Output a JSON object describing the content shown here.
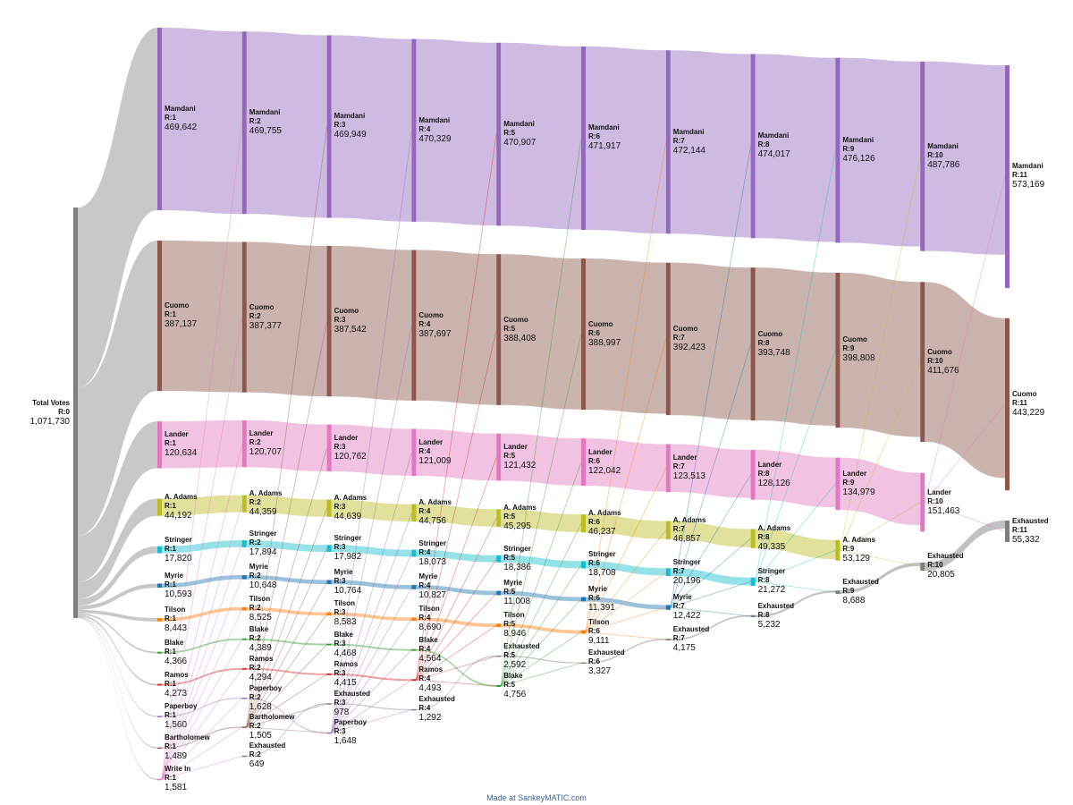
{
  "credit": "Made at SankeyMATIC.com",
  "colors": {
    "Total Votes": "#7f7f7f",
    "Mamdani": "#9467bd",
    "Cuomo": "#8c564b",
    "Lander": "#e377c2",
    "A. Adams": "#bcbd22",
    "Stringer": "#17becf",
    "Myrie": "#1f77b4",
    "Tilson": "#ff7f0e",
    "Blake": "#2ca02c",
    "Ramos": "#d62728",
    "Paperboy": "#9467bd",
    "Bartholomew": "#8c564b",
    "Write In": "#e377c2",
    "Exhausted": "#7f7f7f"
  },
  "chart_data": {
    "type": "sankey",
    "source": {
      "name": "Total Votes",
      "round": "R:0",
      "value": "1,071,730"
    },
    "rounds": [
      {
        "round": "R:1",
        "nodes": [
          {
            "name": "Mamdani",
            "value": "469,642"
          },
          {
            "name": "Cuomo",
            "value": "387,137"
          },
          {
            "name": "Lander",
            "value": "120,634"
          },
          {
            "name": "A. Adams",
            "value": "44,192"
          },
          {
            "name": "Stringer",
            "value": "17,820"
          },
          {
            "name": "Myrie",
            "value": "10,593"
          },
          {
            "name": "Tilson",
            "value": "8,443"
          },
          {
            "name": "Blake",
            "value": "4,366"
          },
          {
            "name": "Ramos",
            "value": "4,273"
          },
          {
            "name": "Paperboy",
            "value": "1,560"
          },
          {
            "name": "Bartholomew",
            "value": "1,489"
          },
          {
            "name": "Write In",
            "value": "1,581"
          }
        ]
      },
      {
        "round": "R:2",
        "nodes": [
          {
            "name": "Mamdani",
            "value": "469,755"
          },
          {
            "name": "Cuomo",
            "value": "387,377"
          },
          {
            "name": "Lander",
            "value": "120,707"
          },
          {
            "name": "A. Adams",
            "value": "44,359"
          },
          {
            "name": "Stringer",
            "value": "17,894"
          },
          {
            "name": "Myrie",
            "value": "10,648"
          },
          {
            "name": "Tilson",
            "value": "8,525"
          },
          {
            "name": "Blake",
            "value": "4,389"
          },
          {
            "name": "Ramos",
            "value": "4,294"
          },
          {
            "name": "Paperboy",
            "value": "1,628"
          },
          {
            "name": "Bartholomew",
            "value": "1,505"
          },
          {
            "name": "Exhausted",
            "value": "649"
          }
        ]
      },
      {
        "round": "R:3",
        "nodes": [
          {
            "name": "Mamdani",
            "value": "469,949"
          },
          {
            "name": "Cuomo",
            "value": "387,542"
          },
          {
            "name": "Lander",
            "value": "120,762"
          },
          {
            "name": "A. Adams",
            "value": "44,639"
          },
          {
            "name": "Stringer",
            "value": "17,982"
          },
          {
            "name": "Myrie",
            "value": "10,764"
          },
          {
            "name": "Tilson",
            "value": "8,583"
          },
          {
            "name": "Blake",
            "value": "4,468"
          },
          {
            "name": "Ramos",
            "value": "4,415"
          },
          {
            "name": "Exhausted",
            "value": "978"
          },
          {
            "name": "Paperboy",
            "value": "1,648"
          }
        ]
      },
      {
        "round": "R:4",
        "nodes": [
          {
            "name": "Mamdani",
            "value": "470,329"
          },
          {
            "name": "Cuomo",
            "value": "387,697"
          },
          {
            "name": "Lander",
            "value": "121,009"
          },
          {
            "name": "A. Adams",
            "value": "44,756"
          },
          {
            "name": "Stringer",
            "value": "18,073"
          },
          {
            "name": "Myrie",
            "value": "10,827"
          },
          {
            "name": "Tilson",
            "value": "8,690"
          },
          {
            "name": "Blake",
            "value": "4,564"
          },
          {
            "name": "Ramos",
            "value": "4,493"
          },
          {
            "name": "Exhausted",
            "value": "1,292"
          }
        ]
      },
      {
        "round": "R:5",
        "nodes": [
          {
            "name": "Mamdani",
            "value": "470,907"
          },
          {
            "name": "Cuomo",
            "value": "388,408"
          },
          {
            "name": "Lander",
            "value": "121,432"
          },
          {
            "name": "A. Adams",
            "value": "45,295"
          },
          {
            "name": "Stringer",
            "value": "18,386"
          },
          {
            "name": "Myrie",
            "value": "11,008"
          },
          {
            "name": "Tilson",
            "value": "8,946"
          },
          {
            "name": "Exhausted",
            "value": "2,592"
          },
          {
            "name": "Blake",
            "value": "4,756"
          }
        ]
      },
      {
        "round": "R:6",
        "nodes": [
          {
            "name": "Mamdani",
            "value": "471,917"
          },
          {
            "name": "Cuomo",
            "value": "388,997"
          },
          {
            "name": "Lander",
            "value": "122,042"
          },
          {
            "name": "A. Adams",
            "value": "46,237"
          },
          {
            "name": "Stringer",
            "value": "18,708"
          },
          {
            "name": "Myrie",
            "value": "11,391"
          },
          {
            "name": "Tilson",
            "value": "9,111"
          },
          {
            "name": "Exhausted",
            "value": "3,327"
          }
        ]
      },
      {
        "round": "R:7",
        "nodes": [
          {
            "name": "Mamdani",
            "value": "472,144"
          },
          {
            "name": "Cuomo",
            "value": "392,423"
          },
          {
            "name": "Lander",
            "value": "123,513"
          },
          {
            "name": "A. Adams",
            "value": "46,857"
          },
          {
            "name": "Stringer",
            "value": "20,196"
          },
          {
            "name": "Myrie",
            "value": "12,422"
          },
          {
            "name": "Exhausted",
            "value": "4,175"
          }
        ]
      },
      {
        "round": "R:8",
        "nodes": [
          {
            "name": "Mamdani",
            "value": "474,017"
          },
          {
            "name": "Cuomo",
            "value": "393,748"
          },
          {
            "name": "Lander",
            "value": "128,126"
          },
          {
            "name": "A. Adams",
            "value": "49,335"
          },
          {
            "name": "Stringer",
            "value": "21,272"
          },
          {
            "name": "Exhausted",
            "value": "5,232"
          }
        ]
      },
      {
        "round": "R:9",
        "nodes": [
          {
            "name": "Mamdani",
            "value": "476,126"
          },
          {
            "name": "Cuomo",
            "value": "398,808"
          },
          {
            "name": "Lander",
            "value": "134,979"
          },
          {
            "name": "A. Adams",
            "value": "53,129"
          },
          {
            "name": "Exhausted",
            "value": "8,688"
          }
        ]
      },
      {
        "round": "R:10",
        "nodes": [
          {
            "name": "Mamdani",
            "value": "487,786"
          },
          {
            "name": "Cuomo",
            "value": "411,676"
          },
          {
            "name": "Lander",
            "value": "151,463"
          },
          {
            "name": "Exhausted",
            "value": "20,805"
          }
        ]
      },
      {
        "round": "R:11",
        "nodes": [
          {
            "name": "Mamdani",
            "value": "573,169"
          },
          {
            "name": "Cuomo",
            "value": "443,229"
          },
          {
            "name": "Exhausted",
            "value": "55,332"
          }
        ]
      }
    ]
  }
}
